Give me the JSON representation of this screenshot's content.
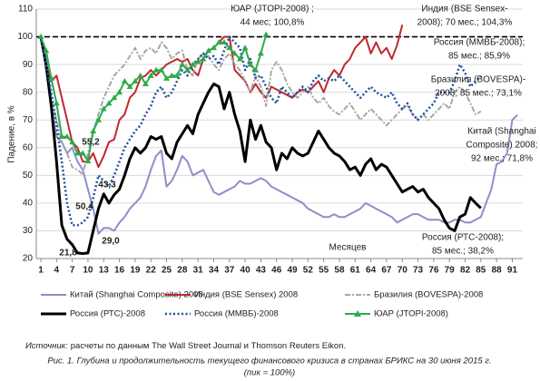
{
  "chart_data": {
    "type": "line",
    "ylabel": "Падение, в %",
    "xlabel": "Месяцев",
    "x": [
      1,
      2,
      3,
      4,
      5,
      6,
      7,
      8,
      9,
      10,
      11,
      12,
      13,
      14,
      15,
      16,
      17,
      18,
      19,
      20,
      21,
      22,
      23,
      24,
      25,
      26,
      27,
      28,
      29,
      30,
      31,
      32,
      33,
      34,
      35,
      36,
      37,
      38,
      39,
      40,
      41,
      42,
      43,
      44,
      45,
      46,
      47,
      48,
      49,
      50,
      51,
      52,
      53,
      54,
      55,
      56,
      57,
      58,
      59,
      60,
      61,
      62,
      63,
      64,
      65,
      66,
      67,
      68,
      69,
      70,
      71,
      72,
      73,
      74,
      75,
      76,
      77,
      78,
      79,
      80,
      81,
      82,
      83,
      84,
      85,
      86,
      87,
      88,
      89,
      90,
      91,
      92
    ],
    "xlim": [
      1,
      93
    ],
    "xticks": [
      1,
      4,
      7,
      10,
      13,
      16,
      19,
      22,
      25,
      28,
      31,
      34,
      37,
      40,
      43,
      46,
      49,
      52,
      55,
      58,
      61,
      64,
      67,
      70,
      73,
      76,
      79,
      82,
      85,
      88,
      91
    ],
    "ylim": [
      20,
      110
    ],
    "yticks": [
      20,
      30,
      40,
      50,
      60,
      70,
      80,
      90,
      100,
      110
    ],
    "grid": true,
    "reference_line": 100,
    "series": [
      {
        "name": "Китай (Shanghai Composite) 2008",
        "color": "#8e8ec8",
        "style": "solid",
        "values": [
          100,
          88,
          75,
          64,
          62,
          58,
          60,
          55,
          52,
          45,
          38,
          29.0,
          31,
          31,
          30,
          33,
          35,
          38,
          40,
          42,
          46,
          52,
          57,
          59,
          46,
          48,
          52,
          57,
          55,
          50,
          51,
          52,
          48,
          44,
          43,
          44,
          45,
          46,
          48,
          47,
          47,
          48,
          49,
          48,
          46,
          45,
          44,
          43,
          42,
          41,
          40,
          38,
          37,
          36,
          35,
          35,
          36,
          35,
          35,
          36,
          37,
          38,
          40,
          39,
          38,
          37,
          36,
          35,
          33,
          34,
          35,
          36,
          36,
          35,
          34,
          34,
          34,
          33,
          33,
          34,
          34,
          33,
          33,
          34,
          35,
          40,
          45,
          54,
          55,
          58,
          70,
          71.8
        ]
      },
      {
        "name": "Индия (BSE Sensex) 2008",
        "color": "#c0282e",
        "style": "solid",
        "values": [
          100,
          90,
          84,
          86,
          78,
          70,
          62,
          60,
          55,
          55,
          58,
          53,
          57,
          62,
          63,
          70,
          72,
          78,
          80,
          85,
          86,
          88,
          86,
          88,
          90,
          91,
          92,
          91,
          92,
          88,
          86,
          92,
          95,
          96,
          98,
          100,
          100,
          88,
          86,
          84,
          80,
          83,
          80,
          78,
          82,
          81,
          80,
          79,
          78,
          80,
          81,
          80,
          82,
          84,
          80,
          85,
          88,
          86,
          90,
          92,
          96,
          98,
          100,
          94,
          98,
          94,
          96,
          92,
          97,
          104.3,
          null,
          null,
          null,
          null,
          null,
          null,
          null,
          null,
          null,
          null,
          null,
          null,
          null,
          null,
          null,
          null,
          null,
          null,
          null,
          null,
          null,
          null
        ]
      },
      {
        "name": "Бразилия (BOVESPA)-2008",
        "color": "#a6a6a6",
        "style": "dashdot",
        "values": [
          100,
          90,
          78,
          70,
          62,
          58,
          53,
          52,
          50.4,
          58,
          66,
          72,
          78,
          82,
          86,
          88,
          90,
          93,
          96,
          92,
          95,
          96,
          94,
          98,
          96,
          92,
          94,
          95,
          88,
          86,
          92,
          94,
          93,
          90,
          88,
          92,
          94,
          90,
          88,
          84,
          80,
          86,
          82,
          75,
          88,
          91,
          88,
          83,
          80,
          78,
          80,
          82,
          78,
          76,
          78,
          75,
          73,
          72,
          74,
          76,
          73,
          70,
          72,
          74,
          72,
          70,
          68,
          70,
          72,
          74,
          75,
          72,
          70,
          72,
          70,
          72,
          74,
          76,
          74,
          80,
          82,
          80,
          76,
          72,
          73.1,
          null,
          null,
          null,
          null,
          null,
          null,
          null
        ]
      },
      {
        "name": "Россия (РТС)-2008",
        "color": "#000000",
        "style": "thick",
        "values": [
          100,
          90,
          75,
          55,
          32,
          27,
          25,
          22,
          21.8,
          22,
          30,
          38,
          43.3,
          40,
          43,
          45,
          50,
          56,
          60,
          58,
          60,
          64,
          63,
          64,
          58,
          56,
          62,
          65,
          68,
          65,
          72,
          76,
          80,
          83,
          82,
          74,
          80,
          72,
          66,
          55,
          70,
          63,
          68,
          62,
          60,
          52,
          58,
          56,
          60,
          58,
          57,
          58,
          62,
          66,
          63,
          60,
          58,
          57,
          55,
          52,
          53,
          50,
          54,
          56,
          52,
          54,
          53,
          50,
          47,
          44,
          45,
          46,
          44,
          45,
          42,
          40,
          38,
          34,
          31,
          30,
          35,
          36,
          42,
          40,
          38.2,
          null,
          null,
          null,
          null,
          null,
          null,
          null
        ]
      },
      {
        "name": "Россия (ММВБ)-2008",
        "color": "#1f4f9f",
        "style": "dotted",
        "values": [
          100,
          90,
          80,
          68,
          55,
          40,
          32,
          32,
          33,
          35,
          42,
          50,
          48,
          46,
          50,
          55,
          60,
          63,
          66,
          68,
          72,
          75,
          80,
          82,
          78,
          80,
          84,
          88,
          86,
          90,
          92,
          94,
          92,
          93,
          90,
          95,
          100,
          98,
          96,
          88,
          92,
          85,
          86,
          82,
          78,
          76,
          82,
          80,
          78,
          80,
          82,
          80,
          84,
          86,
          84,
          85,
          84,
          86,
          84,
          82,
          80,
          78,
          80,
          82,
          80,
          79,
          78,
          80,
          76,
          74,
          76,
          72,
          70,
          72,
          74,
          76,
          80,
          80,
          80,
          84,
          90,
          87,
          82,
          84,
          85.9,
          null,
          null,
          null,
          null,
          null,
          null,
          null
        ]
      },
      {
        "name": "ЮАР (JTOPI-2008)",
        "color": "#2eaa4a",
        "style": "triangles",
        "values": [
          100,
          95,
          85,
          76,
          64,
          64,
          62,
          58,
          58,
          55.2,
          66,
          70,
          74,
          76,
          78,
          80,
          84,
          82,
          84,
          86,
          83,
          86,
          88,
          88,
          85,
          86,
          86,
          90,
          88,
          90,
          91,
          92,
          95,
          96,
          98,
          98,
          96,
          94,
          92,
          96,
          90,
          88,
          94,
          100.8,
          null,
          null,
          null,
          null,
          null,
          null,
          null,
          null,
          null,
          null,
          null,
          null,
          null,
          null,
          null,
          null,
          null,
          null,
          null,
          null,
          null,
          null,
          null,
          null,
          null,
          null,
          null,
          null,
          null,
          null,
          null,
          null,
          null,
          null,
          null,
          null,
          null,
          null,
          null,
          null,
          null,
          null,
          null,
          null,
          null,
          null,
          null,
          null
        ]
      }
    ],
    "annotations": [
      {
        "text": [
          "ЮАР (JTOPI-2008) ;",
          "44 мес; 100,8%"
        ],
        "x": 44,
        "y": 100.8
      },
      {
        "text": [
          "Индия (BSE Sensex-",
          "2008); 70 мес.; 104,3%"
        ],
        "x": 70,
        "y": 104.3
      },
      {
        "text": [
          "Россия (ММВБ-2008);",
          "85 мес.; 85,9%"
        ],
        "x": 85,
        "y": 85.9
      },
      {
        "text": [
          "Бразилия (BOVESPA)-",
          "2008; 85 мес.; 73,1%"
        ],
        "x": 85,
        "y": 73.1
      },
      {
        "text": [
          "Китай (Shanghai",
          "Composite) 2008;",
          "92 мес.; 71,8%"
        ],
        "x": 92,
        "y": 71.8
      },
      {
        "text": [
          "Россия (РТС-2008);",
          "85 мес.; 38,2%"
        ],
        "x": 85,
        "y": 38.2
      },
      {
        "text": [
          "21,8"
        ],
        "x": 9,
        "y": 21.8
      },
      {
        "text": [
          "29,0"
        ],
        "x": 12,
        "y": 29.0
      },
      {
        "text": [
          "50,4"
        ],
        "x": 9,
        "y": 50.4
      },
      {
        "text": [
          "43,3"
        ],
        "x": 13,
        "y": 43.3
      },
      {
        "text": [
          "55,2"
        ],
        "x": 10,
        "y": 55.2
      }
    ],
    "source_label": "Источник:",
    "source_text": "расчеты по данным The Wall Street Journal и Thomson Reuters Eikon.",
    "caption": [
      "Рис. 1. Глубина и продолжительность текущего финансового кризиса в странах БРИКС на 30 июня 2015 г.",
      "(пик = 100%)"
    ]
  }
}
